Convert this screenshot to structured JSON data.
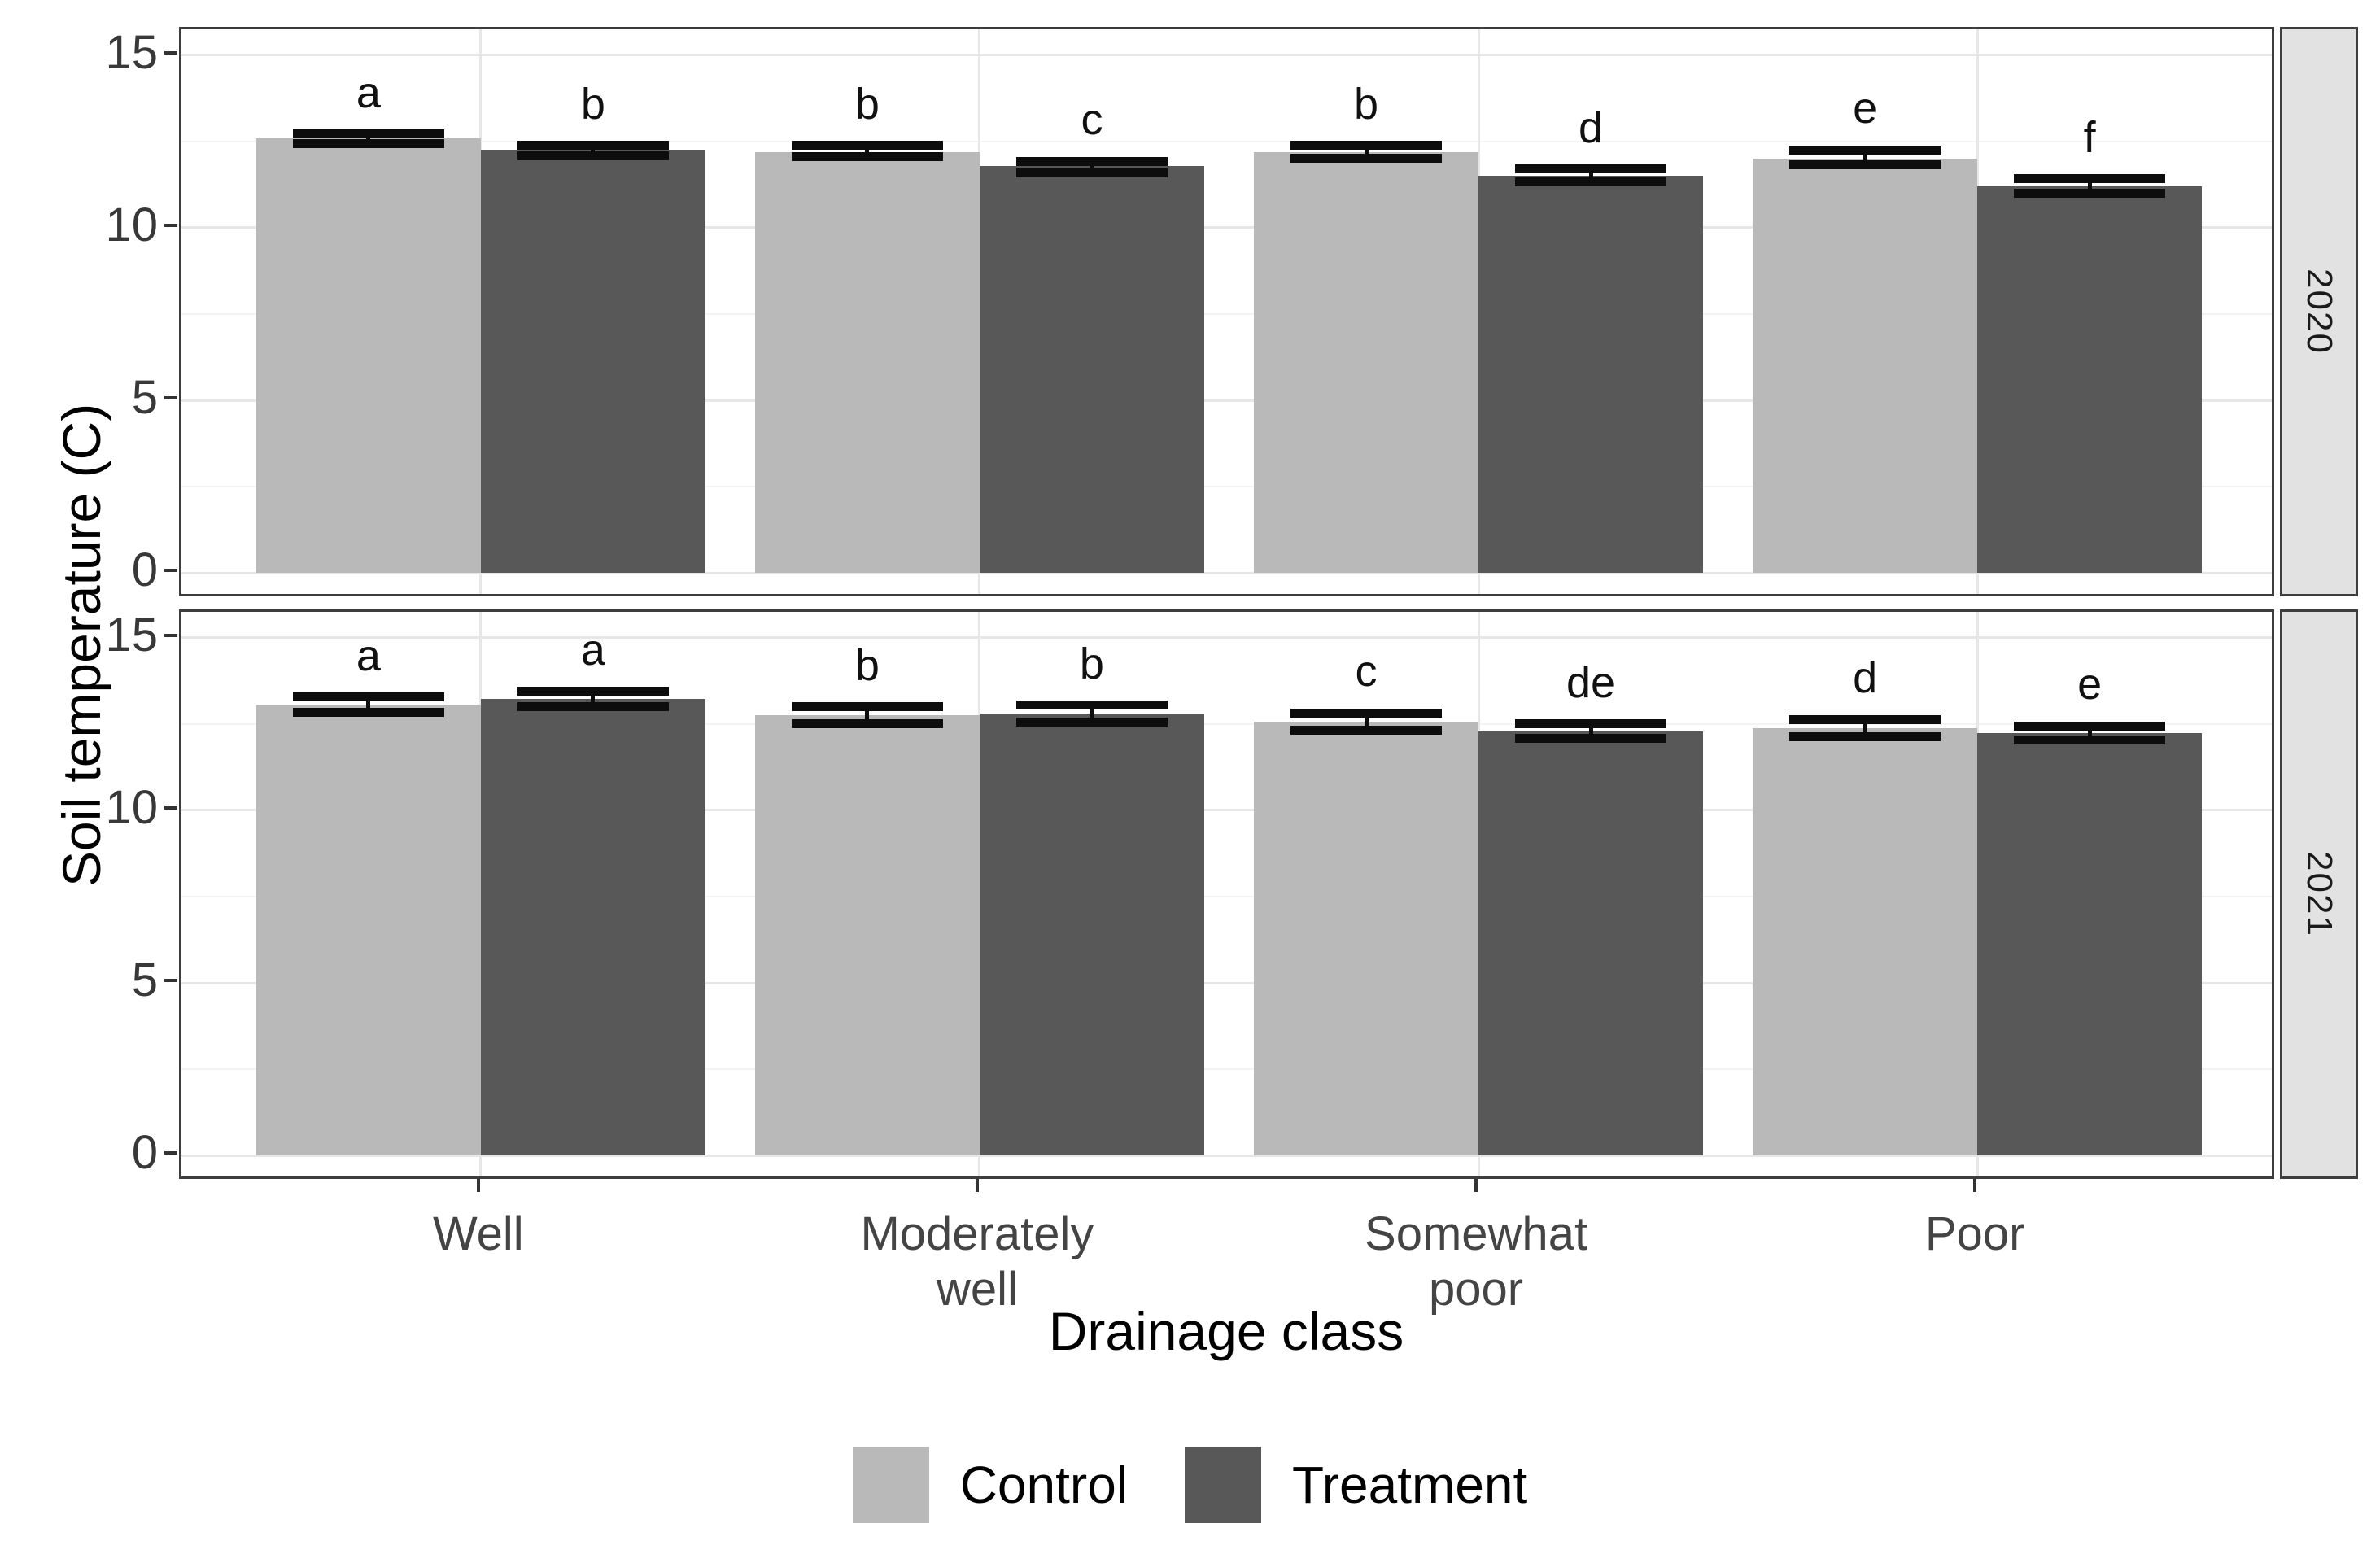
{
  "chart_data": {
    "type": "bar",
    "title": "",
    "ylabel": "Soil temperature (C)",
    "xlabel": "Drainage class",
    "categories": [
      "Well",
      "Moderately\nwell",
      "Somewhat\npoor",
      "Poor"
    ],
    "ylim": [
      0,
      15
    ],
    "yticks": [
      0,
      5,
      10,
      15
    ],
    "ytick_labels": [
      "0",
      "5",
      "10",
      "15"
    ],
    "minor_gridlines": [
      2.5,
      7.5,
      12.5
    ],
    "grid": "on",
    "legend_position": "bottom",
    "legend": [
      "Control",
      "Treatment"
    ],
    "colors": {
      "Control": "#b9b9b9",
      "Treatment": "#585858"
    },
    "strip_bg": "#e2e2e2",
    "error_bar_color": "#0d0d0d",
    "facets": [
      {
        "label": "2020",
        "series": [
          {
            "name": "Control",
            "values": [
              12.6,
              12.2,
              12.2,
              12.0
            ],
            "err_low": [
              12.45,
              12.05,
              12.02,
              11.83
            ],
            "err_high": [
              12.72,
              12.38,
              12.38,
              12.25
            ],
            "letters": [
              "a",
              "b",
              "b",
              "e"
            ]
          },
          {
            "name": "Treatment",
            "values": [
              12.25,
              11.78,
              11.5,
              11.2
            ],
            "err_low": [
              12.08,
              11.6,
              11.33,
              11.0
            ],
            "err_high": [
              12.38,
              11.92,
              11.7,
              11.42
            ],
            "letters": [
              "b",
              "c",
              "d",
              "f"
            ]
          }
        ]
      },
      {
        "label": "2021",
        "series": [
          {
            "name": "Control",
            "values": [
              13.06,
              12.75,
              12.57,
              12.38
            ],
            "err_low": [
              12.85,
              12.5,
              12.33,
              12.13
            ],
            "err_high": [
              13.28,
              13.0,
              12.82,
              12.63
            ],
            "letters": [
              "a",
              "b",
              "c",
              "d"
            ]
          },
          {
            "name": "Treatment",
            "values": [
              13.22,
              12.8,
              12.29,
              12.24
            ],
            "err_low": [
              13.0,
              12.55,
              12.08,
              12.03
            ],
            "err_high": [
              13.45,
              13.05,
              12.5,
              12.45
            ],
            "letters": [
              "a",
              "b",
              "de",
              "e"
            ]
          }
        ]
      }
    ]
  }
}
